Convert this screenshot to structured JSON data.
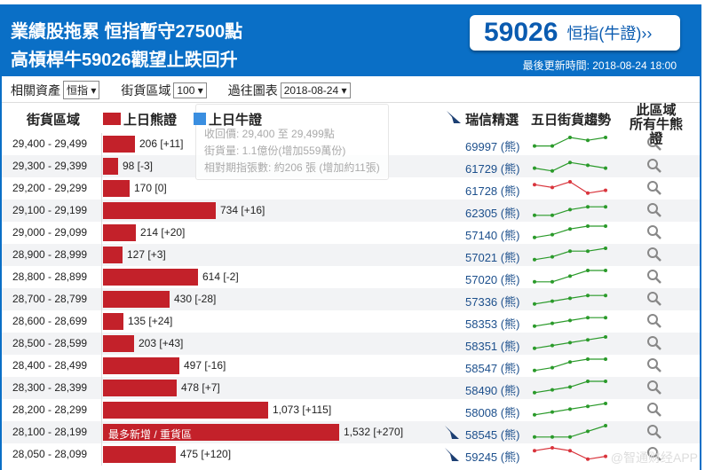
{
  "header": {
    "title_line1": "業績股拖累 恒指暫守27500點",
    "title_line2": "高槓桿牛59026觀望止跌回升",
    "featured_code": "59026",
    "featured_label": "恒指(牛證)››",
    "updated": "最後更新時間: 2018-08-24 18:00"
  },
  "filters": {
    "asset_label": "相關資產",
    "asset_value": "恒指 ▾",
    "zone_label": "街貨區域",
    "zone_value": "100 ▾",
    "chart_label": "過往圖表",
    "chart_value": "2018-08-24 ▾"
  },
  "columns": {
    "zone": "街貨區域",
    "bear": "上日熊證",
    "bull": "上日牛證",
    "pick": "瑞信精選",
    "trend": "五日街貨趨勢",
    "all_line1": "此區域",
    "all_line2": "所有牛熊證"
  },
  "colors": {
    "bear": "#c3212a",
    "bull": "#3a8ee0",
    "up": "#2a9a2a",
    "down": "#d9343c",
    "header": "#0a6fc6"
  },
  "tooltip": {
    "line1": "收回價: 29,400 至 29,499點",
    "line2": "街貨量: 1.1億份(增加559萬份)",
    "line3": "相對期指張數: 約206 張 (增加約11張)"
  },
  "rows": [
    {
      "range": "29,400 - 29,499",
      "value": 206,
      "label": "206 [+11]",
      "code": "69997 (熊)",
      "trend": [
        2,
        2,
        5,
        4,
        5
      ]
    },
    {
      "range": "29,300 - 29,399",
      "value": 98,
      "label": "98 [-3]",
      "code": "61729 (熊)",
      "trend": [
        2,
        1,
        4,
        3,
        2
      ]
    },
    {
      "range": "29,200 - 29,299",
      "value": 170,
      "label": "170 [0]",
      "code": "61728 (熊)",
      "trend": [
        4,
        3,
        5,
        1,
        2
      ]
    },
    {
      "range": "29,100 - 29,199",
      "value": 734,
      "label": "734 [+16]",
      "code": "62305 (熊)",
      "trend": [
        1,
        1,
        3,
        4,
        4
      ]
    },
    {
      "range": "29,000 - 29,099",
      "value": 214,
      "label": "214 [+20]",
      "code": "57140 (熊)",
      "trend": [
        1,
        2,
        4,
        5,
        5
      ]
    },
    {
      "range": "28,900 - 28,999",
      "value": 127,
      "label": "127 [+3]",
      "code": "57021 (熊)",
      "trend": [
        1,
        2,
        4,
        4,
        5
      ]
    },
    {
      "range": "28,800 - 28,899",
      "value": 614,
      "label": "614 [-2]",
      "code": "57020 (熊)",
      "trend": [
        1,
        1,
        3,
        5,
        5
      ]
    },
    {
      "range": "28,700 - 28,799",
      "value": 430,
      "label": "430 [-28]",
      "code": "57336 (熊)",
      "trend": [
        1,
        2,
        3,
        4,
        4
      ]
    },
    {
      "range": "28,600 - 28,699",
      "value": 135,
      "label": "135 [+24]",
      "code": "58353 (熊)",
      "trend": [
        1,
        2,
        3,
        4,
        4
      ]
    },
    {
      "range": "28,500 - 28,599",
      "value": 203,
      "label": "203 [+43]",
      "code": "58351 (熊)",
      "trend": [
        1,
        2,
        3,
        4,
        5
      ]
    },
    {
      "range": "28,400 - 28,499",
      "value": 497,
      "label": "497 [-16]",
      "code": "58547 (熊)",
      "trend": [
        1,
        2,
        4,
        5,
        5
      ]
    },
    {
      "range": "28,300 - 28,399",
      "value": 478,
      "label": "478 [+7]",
      "code": "58490 (熊)",
      "trend": [
        1,
        2,
        3,
        5,
        5
      ]
    },
    {
      "range": "28,200 - 28,299",
      "value": 1073,
      "label": "1,073 [+115]",
      "code": "58008 (熊)",
      "trend": [
        1,
        2,
        3,
        4,
        5
      ]
    },
    {
      "range": "28,100 - 28,199",
      "value": 1532,
      "label": "1,532 [+270]",
      "code": "58545 (熊)",
      "trend": [
        1,
        1,
        1,
        3,
        5
      ],
      "tag": "最多新增 / 重貨區",
      "pick": true
    },
    {
      "range": "28,050 - 28,099",
      "value": 475,
      "label": "475 [+120]",
      "code": "59245 (熊)",
      "trend": [
        4,
        5,
        4,
        1,
        2
      ],
      "pick": true
    }
  ],
  "watermark": "@智通财经APP"
}
